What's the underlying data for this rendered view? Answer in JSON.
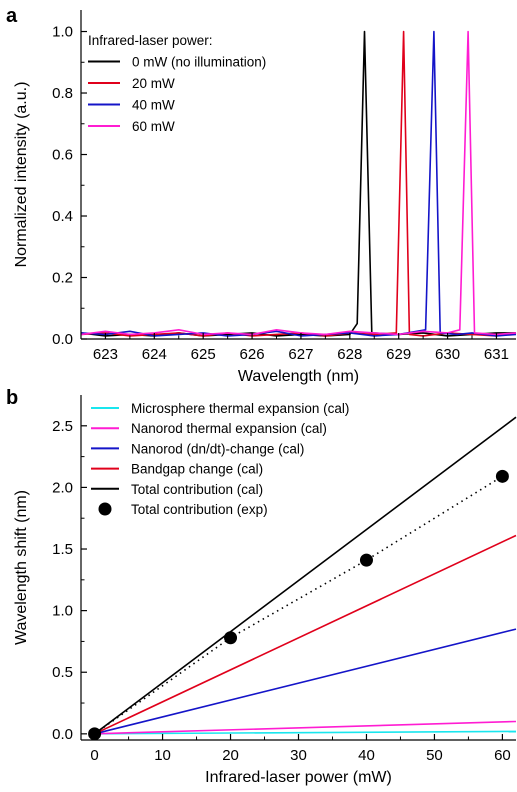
{
  "chart_data": [
    {
      "panel": "a",
      "type": "line",
      "xlabel": "Wavelength (nm)",
      "ylabel": "Normalized intensity (a.u.)",
      "xlim": [
        622.5,
        631.4
      ],
      "ylim": [
        0.0,
        1.07
      ],
      "xticks": [
        623,
        624,
        625,
        626,
        627,
        628,
        629,
        630,
        631
      ],
      "yticks": [
        0.0,
        0.2,
        0.4,
        0.6,
        0.8,
        1.0
      ],
      "ytick_labels": [
        "0.0",
        "0.2",
        "0.4",
        "0.6",
        "0.8",
        "1.0"
      ],
      "legend_title": "Infrared-laser power:",
      "legend_position": "top-left",
      "series": [
        {
          "name": "0 mW (no illumination)",
          "color": "#000000",
          "x": [
            622.5,
            623.0,
            623.5,
            624.0,
            624.5,
            625.0,
            625.5,
            626.0,
            626.5,
            627.0,
            627.5,
            628.0,
            628.15,
            628.3,
            628.45,
            629.0,
            629.5,
            630.0,
            630.5,
            631.0,
            631.4
          ],
          "y": [
            0.02,
            0.01,
            0.015,
            0.01,
            0.02,
            0.01,
            0.015,
            0.02,
            0.01,
            0.015,
            0.01,
            0.015,
            0.05,
            1.0,
            0.02,
            0.015,
            0.02,
            0.01,
            0.015,
            0.02,
            0.02
          ]
        },
        {
          "name": "20 mW",
          "color": "#e0001b",
          "x": [
            622.5,
            623.0,
            623.5,
            624.0,
            624.5,
            625.0,
            625.5,
            626.0,
            626.5,
            627.0,
            627.5,
            628.0,
            628.5,
            628.95,
            629.1,
            629.22,
            629.5,
            630.0,
            630.5,
            631.0,
            631.4
          ],
          "y": [
            0.015,
            0.02,
            0.01,
            0.015,
            0.02,
            0.01,
            0.02,
            0.01,
            0.015,
            0.02,
            0.01,
            0.02,
            0.015,
            0.02,
            1.0,
            0.015,
            0.01,
            0.02,
            0.015,
            0.01,
            0.02
          ]
        },
        {
          "name": "40 mW",
          "color": "#1414c8",
          "x": [
            622.5,
            623.0,
            623.5,
            624.0,
            624.5,
            625.0,
            625.5,
            626.0,
            626.5,
            627.0,
            627.5,
            628.0,
            628.5,
            629.0,
            629.55,
            629.72,
            629.85,
            630.2,
            630.5,
            631.0,
            631.4
          ],
          "y": [
            0.02,
            0.015,
            0.025,
            0.01,
            0.015,
            0.02,
            0.01,
            0.015,
            0.025,
            0.01,
            0.015,
            0.02,
            0.01,
            0.015,
            0.03,
            1.0,
            0.02,
            0.015,
            0.02,
            0.01,
            0.015
          ]
        },
        {
          "name": "60 mW",
          "color": "#ff1cd2",
          "x": [
            622.5,
            623.0,
            623.5,
            624.0,
            624.5,
            625.0,
            625.5,
            626.0,
            626.5,
            627.0,
            627.5,
            628.0,
            628.5,
            629.0,
            629.5,
            630.0,
            630.25,
            630.42,
            630.55,
            631.0,
            631.4
          ],
          "y": [
            0.015,
            0.025,
            0.015,
            0.02,
            0.03,
            0.015,
            0.02,
            0.015,
            0.03,
            0.02,
            0.015,
            0.025,
            0.02,
            0.015,
            0.025,
            0.02,
            0.03,
            1.0,
            0.02,
            0.015,
            0.02
          ]
        }
      ]
    },
    {
      "panel": "b",
      "type": "line",
      "xlabel": "Infrared-laser power (mW)",
      "ylabel": "Wavelength shift (nm)",
      "xlim": [
        -2,
        62
      ],
      "ylim": [
        -0.05,
        2.75
      ],
      "xticks": [
        0,
        10,
        20,
        30,
        40,
        50,
        60
      ],
      "yticks": [
        0.0,
        0.5,
        1.0,
        1.5,
        2.0,
        2.5
      ],
      "ytick_labels": [
        "0.0",
        "0.5",
        "1.0",
        "1.5",
        "2.0",
        "2.5"
      ],
      "legend_position": "top-left",
      "series": [
        {
          "name": "Microsphere thermal expansion (cal)",
          "color": "#19e6ee",
          "style": "solid",
          "x": [
            0,
            62
          ],
          "y": [
            0.0,
            0.02
          ]
        },
        {
          "name": "Nanorod thermal expansion (cal)",
          "color": "#ff1cd2",
          "style": "solid",
          "x": [
            0,
            62
          ],
          "y": [
            0.0,
            0.1
          ]
        },
        {
          "name": "Nanorod (dn/dt)-change (cal)",
          "color": "#1414c8",
          "style": "solid",
          "x": [
            0,
            62
          ],
          "y": [
            0.0,
            0.85
          ]
        },
        {
          "name": "Bandgap change (cal)",
          "color": "#e0001b",
          "style": "solid",
          "x": [
            0,
            62
          ],
          "y": [
            0.0,
            1.61
          ]
        },
        {
          "name": "Total contribution (cal)",
          "color": "#000000",
          "style": "solid",
          "x": [
            0,
            62
          ],
          "y": [
            0.0,
            2.57
          ]
        },
        {
          "name": "Total contribution (exp)",
          "color": "#000000",
          "style": "dotted-with-markers",
          "x": [
            0,
            20,
            40,
            60
          ],
          "y": [
            0.0,
            0.78,
            1.41,
            2.09
          ]
        }
      ]
    }
  ],
  "labels": {
    "panel_a": "a",
    "panel_b": "b"
  }
}
